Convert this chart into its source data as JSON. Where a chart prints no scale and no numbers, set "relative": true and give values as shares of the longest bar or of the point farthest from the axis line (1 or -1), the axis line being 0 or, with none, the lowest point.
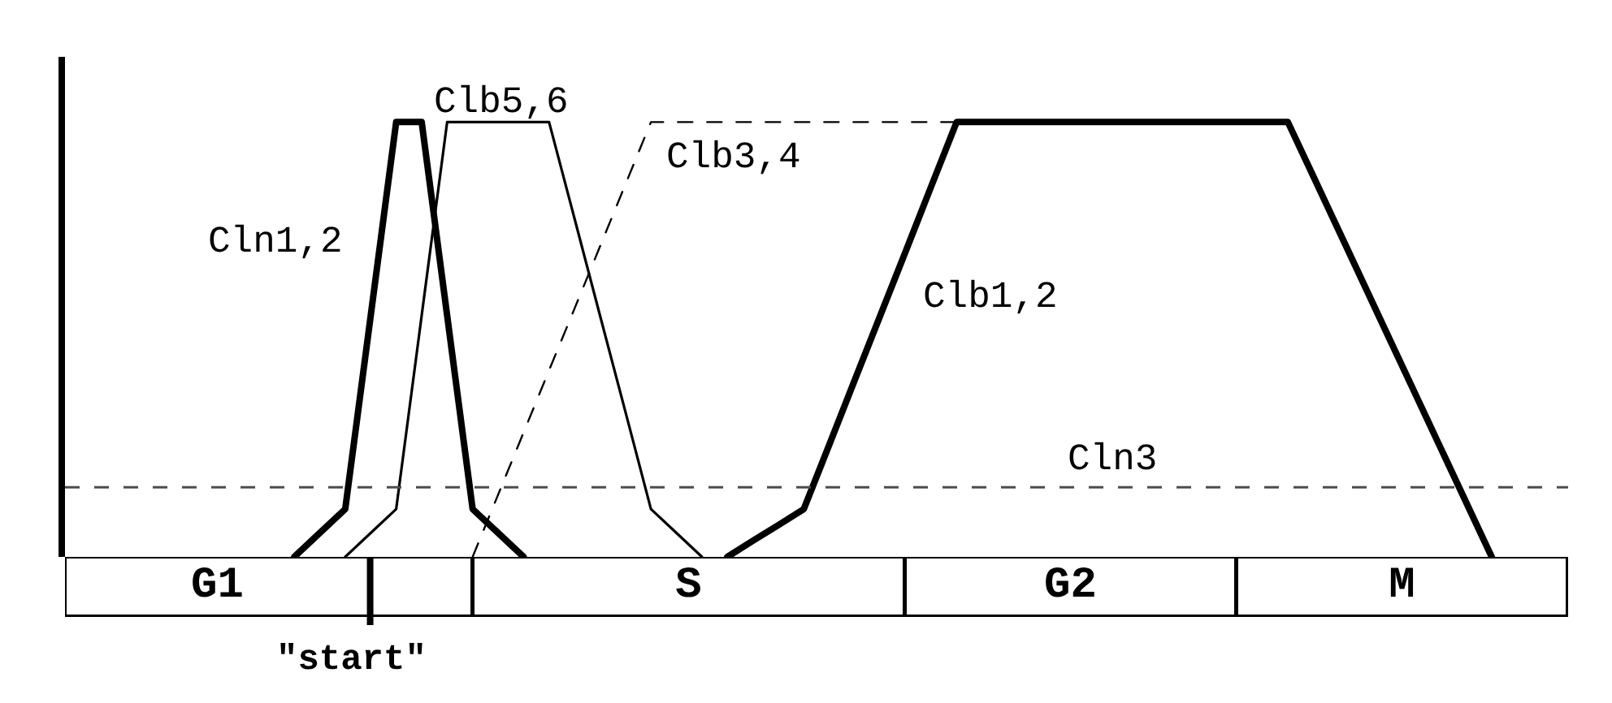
{
  "chart_data": [
    {
      "type": "line",
      "relative": true,
      "legend": false,
      "line_style": "solid",
      "categories": [
        null,
        null,
        null,
        null,
        null,
        null,
        null,
        null,
        null,
        null,
        null,
        null,
        null,
        null,
        null,
        null,
        null,
        null,
        null,
        null,
        null,
        null,
        null,
        null,
        null,
        null,
        null,
        null,
        null,
        null,
        null,
        null,
        null,
        null,
        null,
        null,
        null,
        null,
        null,
        null,
        null,
        null,
        null,
        null,
        null,
        null,
        null,
        null,
        null,
        null,
        null,
        null,
        null,
        null,
        null,
        null,
        null,
        null,
        null,
        null
      ],
      "series": [
        {
          "name": "Cln1,2",
          "color": "#000000",
          "values": [
            null,
            null,
            null,
            null,
            null,
            null,
            null,
            null,
            null,
            0,
            0.055,
            0.11,
            0.555,
            1,
            1,
            0.555,
            0.11,
            0.055,
            0,
            null,
            null,
            null,
            null,
            null,
            null,
            null,
            null,
            null,
            null,
            null,
            null,
            null,
            null,
            null,
            null,
            null,
            null,
            null,
            null,
            null,
            null,
            null,
            null,
            null,
            null,
            null,
            null,
            null,
            null,
            null,
            null,
            null,
            null,
            null,
            null,
            null,
            null,
            null,
            null,
            null
          ]
        },
        {
          "name": "Clb5,6",
          "color": "#000000",
          "values": [
            null,
            null,
            null,
            null,
            null,
            null,
            null,
            null,
            null,
            null,
            null,
            0,
            0.055,
            0.11,
            0.555,
            1,
            1,
            1,
            1,
            1,
            0.778,
            0.555,
            0.333,
            0.11,
            0.055,
            0,
            null,
            null,
            null,
            null,
            null,
            null,
            null,
            null,
            null,
            null,
            null,
            null,
            null,
            null,
            null,
            null,
            null,
            null,
            null,
            null,
            null,
            null,
            null,
            null,
            null,
            null,
            null,
            null,
            null,
            null,
            null,
            null,
            null,
            null
          ]
        },
        {
          "name": "Clb3,4",
          "color": "#000000",
          "line_style": "dashed",
          "values": [
            null,
            null,
            null,
            null,
            null,
            null,
            null,
            null,
            null,
            null,
            null,
            null,
            null,
            null,
            null,
            null,
            0,
            0.143,
            0.286,
            0.429,
            0.571,
            0.714,
            0.857,
            1,
            1,
            1,
            1,
            1,
            1,
            1,
            1,
            1,
            1,
            1,
            1,
            1,
            null,
            null,
            null,
            null,
            null,
            null,
            null,
            null,
            null,
            null,
            null,
            null,
            null,
            null,
            null,
            null,
            null,
            null,
            null,
            null,
            null,
            null,
            null,
            null
          ]
        },
        {
          "name": "Clb1,2",
          "color": "#000000",
          "values": [
            null,
            null,
            null,
            null,
            null,
            null,
            null,
            null,
            null,
            null,
            null,
            null,
            null,
            null,
            null,
            null,
            null,
            null,
            null,
            null,
            null,
            null,
            null,
            null,
            null,
            null,
            0,
            0.037,
            0.073,
            0.11,
            0.258,
            0.407,
            0.555,
            0.703,
            0.852,
            1,
            1,
            1,
            1,
            1,
            1,
            1,
            1,
            1,
            1,
            1,
            1,
            1,
            1,
            0.875,
            0.75,
            0.625,
            0.5,
            0.375,
            0.25,
            0.125,
            0,
            null,
            null,
            null
          ]
        }
      ],
      "ref_lines": [
        {
          "axis": "y",
          "value": 0.16,
          "label": "Cln3",
          "color": "#4d4d4d",
          "line_style": "dashed"
        }
      ]
    },
    {
      "type": "bar",
      "orientation": "horizontal",
      "stacked": true,
      "relative": true,
      "legend": false,
      "categories": [
        null
      ],
      "series": [
        {
          "name": "G1",
          "color": "#ffffff",
          "values": [
            0.203
          ]
        },
        {
          "color": "#ffffff",
          "values": [
            0.068
          ]
        },
        {
          "name": "S",
          "color": "#ffffff",
          "values": [
            0.288
          ]
        },
        {
          "name": "G2",
          "color": "#ffffff",
          "values": [
            0.22
          ]
        },
        {
          "name": "M",
          "color": "#ffffff",
          "values": [
            0.221
          ]
        }
      ],
      "ref_lines": [
        {
          "axis": "x",
          "value": 0.203,
          "label": "\"start\""
        }
      ]
    }
  ]
}
